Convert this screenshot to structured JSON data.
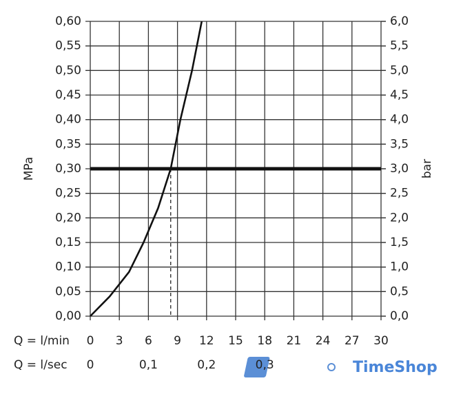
{
  "chart_data": {
    "type": "line",
    "x": [
      0,
      2,
      4,
      5.5,
      7,
      8.3,
      9.3,
      10.5,
      11.5
    ],
    "series": [
      {
        "values": [
          0,
          0.04,
          0.09,
          0.15,
          0.22,
          0.3,
          0.4,
          0.5,
          0.6
        ],
        "color": "#111111"
      }
    ],
    "xlim": [
      0,
      30
    ],
    "xticks": [
      0,
      3,
      6,
      9,
      12,
      15,
      18,
      21,
      24,
      27,
      30
    ],
    "x_label": "Q = l/min",
    "x2lim": [
      0,
      0.5
    ],
    "x2ticks": [
      0,
      {
        "value": 0.1,
        "label": "0,1"
      },
      {
        "value": 0.2,
        "label": "0,2"
      },
      {
        "value": 0.3,
        "label": "0,3"
      }
    ],
    "x2_label": "Q = l/sec",
    "ylim": [
      0,
      0.6
    ],
    "yticks": [
      {
        "value": 0,
        "label": "0,00"
      },
      {
        "value": 0.05,
        "label": "0,05"
      },
      {
        "value": 0.1,
        "label": "0,10"
      },
      {
        "value": 0.15,
        "label": "0,15"
      },
      {
        "value": 0.2,
        "label": "0,20"
      },
      {
        "value": 0.25,
        "label": "0,25"
      },
      {
        "value": 0.3,
        "label": "0,30"
      },
      {
        "value": 0.35,
        "label": "0,35"
      },
      {
        "value": 0.4,
        "label": "0,40"
      },
      {
        "value": 0.45,
        "label": "0,45"
      },
      {
        "value": 0.5,
        "label": "0,50"
      },
      {
        "value": 0.55,
        "label": "0,55"
      },
      {
        "value": 0.6,
        "label": "0,60"
      }
    ],
    "y_label": "MPa",
    "y2lim": [
      0,
      6
    ],
    "y2ticks": [
      {
        "value": 0,
        "label": "0,0"
      },
      {
        "value": 0.5,
        "label": "0,5"
      },
      {
        "value": 1,
        "label": "1,0"
      },
      {
        "value": 1.5,
        "label": "1,5"
      },
      {
        "value": 2,
        "label": "2,0"
      },
      {
        "value": 2.5,
        "label": "2,5"
      },
      {
        "value": 3,
        "label": "3,0"
      },
      {
        "value": 3.5,
        "label": "3,5"
      },
      {
        "value": 4,
        "label": "4,0"
      },
      {
        "value": 4.5,
        "label": "4,5"
      },
      {
        "value": 5,
        "label": "5,0"
      },
      {
        "value": 5.5,
        "label": "5,5"
      },
      {
        "value": 6,
        "label": "6,0"
      }
    ],
    "y2_label": "bar",
    "grid": true,
    "highlight_y": 0.3,
    "highlight_x": 8.3,
    "strong_grid_y": 0.4,
    "watermark": "TimeShop"
  }
}
